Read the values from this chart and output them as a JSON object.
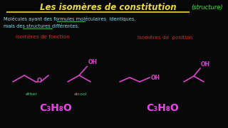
{
  "bg_color": "#080808",
  "title": "Les isomères de constitution",
  "title_color": "#e8d84a",
  "title_underline_color": "#c8b820",
  "structure_text": "(structure)",
  "structure_color": "#44dd44",
  "line1": "Molécules ayant des formules moléculaires  identiques,",
  "line2": "mais des structures différentes.",
  "body_color": "#88ddee",
  "label_fonc": "isomères de fonction",
  "label_pos": "isomères de  position",
  "label_color": "#cc3322",
  "mol_color": "#dd44cc",
  "ether_label": "éther",
  "alcool_label": "alcool",
  "sub_label_color": "#44cc88",
  "formula_color": "#ee44ee",
  "formula1": "C₃H₈O",
  "formula2": "C₃H₈O",
  "underline_color": "#44aa44"
}
